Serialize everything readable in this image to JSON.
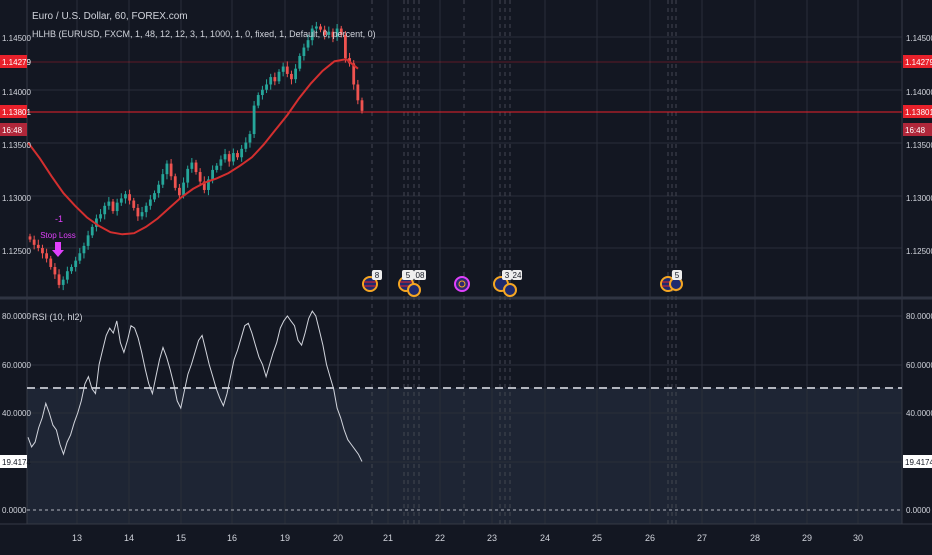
{
  "header": {
    "symbol_title": "Euro / U.S. Dollar, 60, FOREX.com",
    "indicator_params": "HLHB (EURUSD, FXCM, 1, 48, 12, 12, 3, 1, 1000, 1, 0, fixed, 1, Default, 0, percent, 0)"
  },
  "rsi": {
    "label": "RSI (10, hl2)",
    "current_value": "19.4174",
    "scale_labels": [
      "80.0000",
      "60.0000",
      "40.0000",
      "0.0000"
    ]
  },
  "price_axis": {
    "ticks": [
      "1.14500",
      "1.14000",
      "1.13500",
      "1.13000",
      "1.12500"
    ],
    "red_label": "1.14279",
    "last_price_label": "1.13801",
    "countdown_label": "16:48"
  },
  "annotations": {
    "order_count": "-1",
    "order_label": "Stop Loss"
  },
  "event_counts": [
    "8",
    "5",
    "08",
    "3",
    "24",
    "5"
  ],
  "time_axis": {
    "labels": [
      "13",
      "14",
      "15",
      "16",
      "19",
      "20",
      "21",
      "22",
      "23",
      "24",
      "25",
      "26",
      "27",
      "28",
      "29",
      "30"
    ]
  },
  "colors": {
    "background": "#131722",
    "grid": "#2a2e39",
    "bull": "#26a69a",
    "bear": "#ef5350",
    "ma": "#d32f2f",
    "accent_red": "#e8212b",
    "rsi_line": "#d1d4dc",
    "annotation": "#e040fb"
  },
  "chart_data": {
    "type": "candlestick",
    "title": "Euro / U.S. Dollar, 60, FOREX.com",
    "price_range": [
      1.121,
      1.1475
    ],
    "close_prices": [
      1.1258,
      1.1253,
      1.125,
      1.1245,
      1.124,
      1.1232,
      1.1225,
      1.1215,
      1.122,
      1.1228,
      1.1232,
      1.1238,
      1.1245,
      1.1252,
      1.1262,
      1.127,
      1.1278,
      1.1282,
      1.129,
      1.1294,
      1.1285,
      1.1293,
      1.1297,
      1.1301,
      1.1295,
      1.1288,
      1.128,
      1.1284,
      1.129,
      1.1296,
      1.1302,
      1.131,
      1.132,
      1.133,
      1.1318,
      1.1307,
      1.13,
      1.1312,
      1.1325,
      1.1331,
      1.1322,
      1.1313,
      1.1305,
      1.1315,
      1.1324,
      1.1328,
      1.1334,
      1.1339,
      1.1332,
      1.134,
      1.1336,
      1.1344,
      1.135,
      1.1358,
      1.1385,
      1.1395,
      1.14,
      1.1405,
      1.1412,
      1.1408,
      1.1417,
      1.1422,
      1.1415,
      1.141,
      1.142,
      1.1432,
      1.144,
      1.1447,
      1.1458,
      1.146,
      1.1457,
      1.1452,
      1.1455,
      1.145,
      1.1458,
      1.1452,
      1.143,
      1.1425,
      1.1405,
      1.139,
      1.138
    ],
    "moving_average": [
      1.135,
      1.1335,
      1.1318,
      1.1302,
      1.129,
      1.1279,
      1.1271,
      1.1265,
      1.1263,
      1.1264,
      1.127,
      1.1278,
      1.1288,
      1.1298,
      1.1306,
      1.1312,
      1.1316,
      1.1321,
      1.1328,
      1.1336,
      1.1348,
      1.1362,
      1.1376,
      1.1392,
      1.1406,
      1.1418,
      1.1427,
      1.1429,
      1.142
    ],
    "rsi_values": [
      30,
      26,
      28,
      34,
      38,
      44,
      40,
      35,
      33,
      27,
      23,
      28,
      31,
      36,
      40,
      45,
      52,
      55,
      50,
      48,
      60,
      66,
      72,
      75,
      73,
      78,
      69,
      65,
      70,
      76,
      75,
      71,
      65,
      58,
      52,
      48,
      55,
      62,
      67,
      63,
      58,
      52,
      45,
      42,
      49,
      56,
      60,
      65,
      70,
      72,
      66,
      60,
      55,
      50,
      46,
      43,
      48,
      55,
      62,
      66,
      71,
      76,
      77,
      73,
      68,
      63,
      60,
      55,
      60,
      65,
      69,
      75,
      78,
      80,
      78,
      76,
      70,
      68,
      73,
      79,
      82,
      80,
      74,
      68,
      60,
      55,
      50,
      42,
      38,
      33,
      29,
      27,
      25,
      23,
      20
    ],
    "rsi_range": [
      -5,
      85
    ],
    "rsi_levels": [
      50
    ],
    "x_categories": [
      "13",
      "14",
      "15",
      "16",
      "19",
      "20",
      "21",
      "22",
      "23",
      "24",
      "25",
      "26",
      "27",
      "28",
      "29",
      "30"
    ]
  }
}
